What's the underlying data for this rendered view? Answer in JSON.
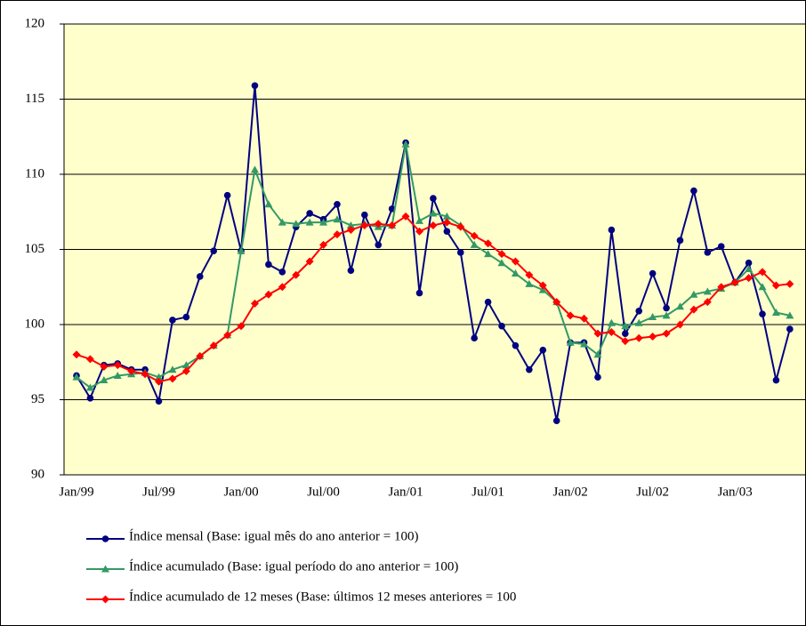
{
  "chart_data": {
    "type": "line",
    "categories": [
      "Jan/99",
      null,
      null,
      null,
      null,
      null,
      "Jul/99",
      null,
      null,
      null,
      null,
      null,
      "Jan/00",
      null,
      null,
      null,
      null,
      null,
      "Jul/00",
      null,
      null,
      null,
      null,
      null,
      "Jan/01",
      null,
      null,
      null,
      null,
      null,
      "Jul/01",
      null,
      null,
      null,
      null,
      null,
      "Jan/02",
      null,
      null,
      null,
      null,
      null,
      "Jul/02",
      null,
      null,
      null,
      null,
      null,
      "Jan/03",
      null,
      null,
      null,
      null
    ],
    "series": [
      {
        "name": "Índice mensal (Base: igual mês do ano anterior = 100)",
        "color": "#000080",
        "marker": "circle",
        "values": [
          96.6,
          95.1,
          97.3,
          97.4,
          97.0,
          97.0,
          94.9,
          100.3,
          100.5,
          103.2,
          104.9,
          108.6,
          104.9,
          115.9,
          104.0,
          103.5,
          106.5,
          107.4,
          107.0,
          108.0,
          103.6,
          107.3,
          105.3,
          107.7,
          112.1,
          102.1,
          108.4,
          106.2,
          104.8,
          99.1,
          101.5,
          99.9,
          98.6,
          97.0,
          98.3,
          93.6,
          98.8,
          98.8,
          96.5,
          106.3,
          99.4,
          100.9,
          103.4,
          101.1,
          105.6,
          108.9,
          104.8,
          105.2,
          102.8,
          104.1,
          100.7,
          96.3,
          99.7
        ]
      },
      {
        "name": "Índice acumulado (Base: igual período do ano anterior = 100)",
        "color": "#339966",
        "marker": "triangle",
        "values": [
          96.5,
          95.8,
          96.3,
          96.6,
          96.7,
          96.8,
          96.5,
          97.0,
          97.3,
          97.9,
          98.6,
          99.3,
          104.9,
          110.3,
          108.0,
          106.8,
          106.7,
          106.8,
          106.8,
          107.0,
          106.6,
          106.7,
          106.5,
          106.6,
          112.0,
          106.9,
          107.4,
          107.2,
          106.6,
          105.3,
          104.7,
          104.1,
          103.4,
          102.7,
          102.3,
          101.5,
          98.8,
          98.7,
          98.0,
          100.1,
          99.9,
          100.1,
          100.5,
          100.6,
          101.2,
          102.0,
          102.2,
          102.4,
          102.8,
          103.7,
          102.5,
          100.8,
          100.6
        ]
      },
      {
        "name": "Índice acumulado de 12 meses (Base: últimos 12 meses anteriores = 100",
        "color": "#ff0000",
        "marker": "diamond",
        "values": [
          98.0,
          97.7,
          97.2,
          97.3,
          96.9,
          96.7,
          96.2,
          96.4,
          96.9,
          97.9,
          98.6,
          99.3,
          99.9,
          101.4,
          102.0,
          102.5,
          103.3,
          104.2,
          105.3,
          106.0,
          106.3,
          106.6,
          106.7,
          106.6,
          107.2,
          106.2,
          106.6,
          106.8,
          106.5,
          105.9,
          105.4,
          104.7,
          104.2,
          103.3,
          102.6,
          101.5,
          100.6,
          100.4,
          99.4,
          99.5,
          98.9,
          99.1,
          99.2,
          99.4,
          100.0,
          101.0,
          101.5,
          102.5,
          102.8,
          103.1,
          103.5,
          102.6,
          102.7
        ]
      }
    ],
    "ylim": [
      90,
      120
    ],
    "yticks": [
      90,
      95,
      100,
      105,
      110,
      115,
      120
    ],
    "grid": true,
    "plot_background": "#ffffcc"
  }
}
